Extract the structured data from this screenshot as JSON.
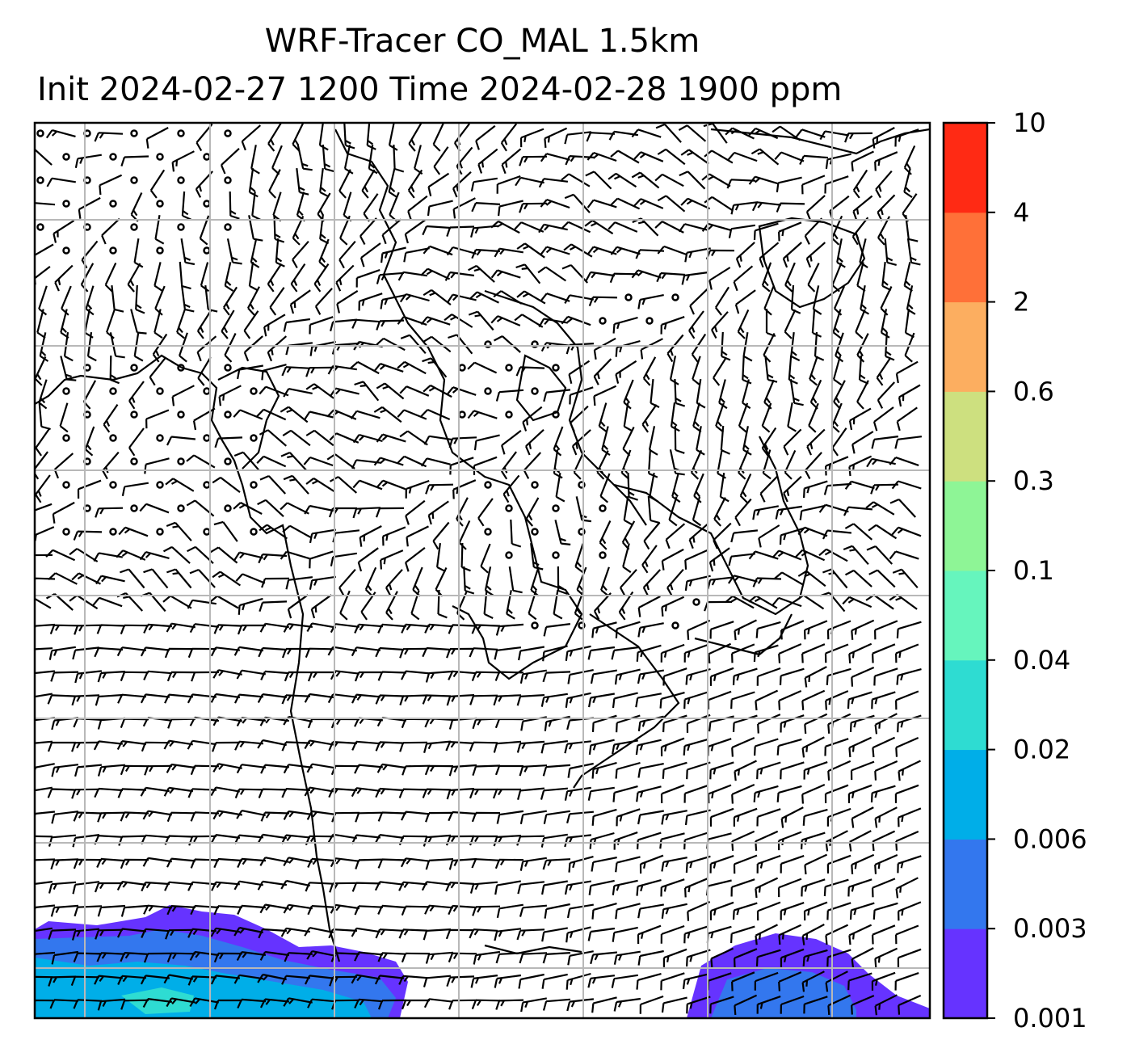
{
  "title": {
    "line1": "WRF-Tracer CO_MAL 1.5km",
    "line2": "Init 2024-02-27 1200 Time 2024-02-28 1900 ppm"
  },
  "colorbar": {
    "levels": [
      "0.001",
      "0.003",
      "0.006",
      "0.02",
      "0.04",
      "0.1",
      "0.3",
      "0.6",
      "2",
      "4",
      "10"
    ],
    "colors": [
      "#6633ff",
      "#3377ee",
      "#00aee8",
      "#2edcd2",
      "#66f5bd",
      "#8ef596",
      "#cde07f",
      "#fcae60",
      "#ff7038",
      "#ff2a14"
    ]
  },
  "map": {
    "overlay": "wind barbs",
    "gridlines": true
  }
}
